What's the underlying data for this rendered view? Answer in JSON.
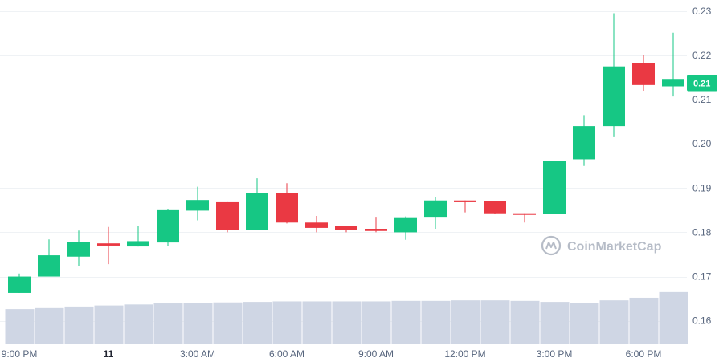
{
  "chart_data": {
    "type": "candlestick",
    "title": "",
    "watermark": "CoinMarketCap",
    "y_axis": {
      "ticks": [
        0.16,
        0.17,
        0.18,
        0.19,
        0.2,
        0.21,
        0.22,
        0.23
      ],
      "tick_labels": [
        "0.16",
        "0.17",
        "0.18",
        "0.19",
        "0.20",
        "0.21",
        "0.22",
        "0.23"
      ],
      "range": [
        0.1545,
        0.2325
      ],
      "position": "right"
    },
    "x_axis": {
      "tick_labels": [
        "9:00 PM",
        "11",
        "3:00 AM",
        "6:00 AM",
        "9:00 AM",
        "12:00 PM",
        "3:00 PM",
        "6:00 PM"
      ],
      "tick_candle_index": [
        0,
        3,
        6,
        9,
        12,
        15,
        18,
        21
      ]
    },
    "current_price": {
      "value": 0.2138,
      "label": "0.21"
    },
    "colors": {
      "up": "#16c784",
      "down": "#ea3943",
      "volume": "#cfd6e4",
      "price_line": "#16c784"
    },
    "candles": [
      {
        "o": 0.1663,
        "h": 0.1707,
        "l": 0.1663,
        "c": 0.17
      },
      {
        "o": 0.17,
        "h": 0.1784,
        "l": 0.17,
        "c": 0.1748
      },
      {
        "o": 0.1745,
        "h": 0.1804,
        "l": 0.1723,
        "c": 0.1779
      },
      {
        "o": 0.1775,
        "h": 0.1812,
        "l": 0.1728,
        "c": 0.177
      },
      {
        "o": 0.1768,
        "h": 0.1814,
        "l": 0.1768,
        "c": 0.178
      },
      {
        "o": 0.1777,
        "h": 0.1853,
        "l": 0.177,
        "c": 0.185
      },
      {
        "o": 0.1849,
        "h": 0.1903,
        "l": 0.1827,
        "c": 0.1873
      },
      {
        "o": 0.1868,
        "h": 0.1868,
        "l": 0.18,
        "c": 0.1805
      },
      {
        "o": 0.1806,
        "h": 0.1922,
        "l": 0.1806,
        "c": 0.1889
      },
      {
        "o": 0.1889,
        "h": 0.1911,
        "l": 0.182,
        "c": 0.1822
      },
      {
        "o": 0.1822,
        "h": 0.1837,
        "l": 0.18,
        "c": 0.181
      },
      {
        "o": 0.1815,
        "h": 0.1815,
        "l": 0.18,
        "c": 0.1806
      },
      {
        "o": 0.1808,
        "h": 0.1835,
        "l": 0.18,
        "c": 0.1803
      },
      {
        "o": 0.18,
        "h": 0.1836,
        "l": 0.1783,
        "c": 0.1834
      },
      {
        "o": 0.1835,
        "h": 0.188,
        "l": 0.1808,
        "c": 0.1872
      },
      {
        "o": 0.1872,
        "h": 0.1872,
        "l": 0.1845,
        "c": 0.1868
      },
      {
        "o": 0.187,
        "h": 0.187,
        "l": 0.1842,
        "c": 0.1843
      },
      {
        "o": 0.1843,
        "h": 0.1843,
        "l": 0.1822,
        "c": 0.184
      },
      {
        "o": 0.1842,
        "h": 0.1961,
        "l": 0.1842,
        "c": 0.1961
      },
      {
        "o": 0.1965,
        "h": 0.2065,
        "l": 0.195,
        "c": 0.204
      },
      {
        "o": 0.204,
        "h": 0.2295,
        "l": 0.2015,
        "c": 0.2175
      },
      {
        "o": 0.2183,
        "h": 0.22,
        "l": 0.212,
        "c": 0.2133
      },
      {
        "o": 0.213,
        "h": 0.2251,
        "l": 0.2107,
        "c": 0.2145
      }
    ],
    "volume": [
      0.2,
      0.22,
      0.25,
      0.27,
      0.29,
      0.31,
      0.32,
      0.33,
      0.34,
      0.35,
      0.35,
      0.35,
      0.35,
      0.36,
      0.36,
      0.37,
      0.37,
      0.36,
      0.34,
      0.32,
      0.37,
      0.42,
      0.53
    ]
  }
}
